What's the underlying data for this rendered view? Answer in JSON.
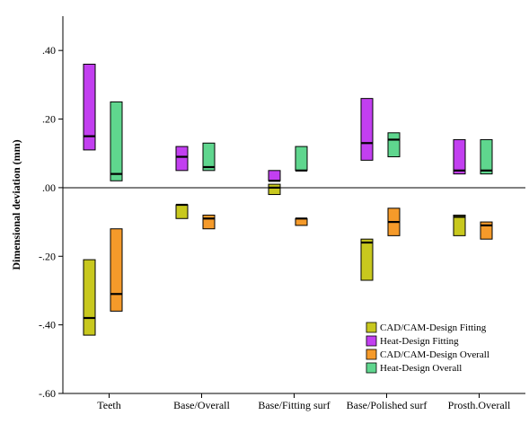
{
  "chart_data": {
    "type": "box",
    "title": "",
    "xlabel": "",
    "ylabel": "Dimensional deviation (mm)",
    "ylim": [
      -0.6,
      0.5
    ],
    "yticks": [
      {
        "value": 0.4,
        "label": ".40"
      },
      {
        "value": 0.2,
        "label": ".20"
      },
      {
        "value": 0.0,
        "label": ".00"
      },
      {
        "value": -0.2,
        "label": "-.20"
      },
      {
        "value": -0.4,
        "label": "-.40"
      },
      {
        "value": -0.6,
        "label": "-.60"
      }
    ],
    "reference_line": 0.0,
    "categories": [
      "Teeth",
      "Base/Overall",
      "Base/Fitting surf",
      "Base/Polished surf",
      "Prosth.Overall"
    ],
    "legend_position": "bottom-right",
    "series": [
      {
        "name": "CAD/CAM-Design Fitting",
        "color": "#c8c81e",
        "boxes": [
          {
            "low": -0.43,
            "high": -0.21,
            "median": -0.38
          },
          {
            "low": -0.09,
            "high": -0.05,
            "median": -0.05
          },
          {
            "low": -0.02,
            "high": 0.01,
            "median": 0.0
          },
          {
            "low": -0.27,
            "high": -0.15,
            "median": -0.16
          },
          {
            "low": -0.14,
            "high": -0.08,
            "median": -0.085
          }
        ]
      },
      {
        "name": "Heat-Design Fitting",
        "color": "#c23ff0",
        "boxes": [
          {
            "low": 0.11,
            "high": 0.36,
            "median": 0.15
          },
          {
            "low": 0.05,
            "high": 0.12,
            "median": 0.09
          },
          {
            "low": 0.02,
            "high": 0.05,
            "median": 0.02
          },
          {
            "low": 0.08,
            "high": 0.26,
            "median": 0.13
          },
          {
            "low": 0.04,
            "high": 0.14,
            "median": 0.05
          }
        ]
      },
      {
        "name": "CAD/CAM-Design Overall",
        "color": "#f59a2a",
        "boxes": [
          {
            "low": -0.36,
            "high": -0.12,
            "median": -0.31
          },
          {
            "low": -0.12,
            "high": -0.08,
            "median": -0.09
          },
          {
            "low": -0.11,
            "high": -0.09,
            "median": -0.09
          },
          {
            "low": -0.14,
            "high": -0.06,
            "median": -0.1
          },
          {
            "low": -0.15,
            "high": -0.1,
            "median": -0.11
          }
        ]
      },
      {
        "name": "Heat-Design Overall",
        "color": "#5fd68e",
        "boxes": [
          {
            "low": 0.02,
            "high": 0.25,
            "median": 0.04
          },
          {
            "low": 0.05,
            "high": 0.13,
            "median": 0.06
          },
          {
            "low": 0.05,
            "high": 0.12,
            "median": 0.05
          },
          {
            "low": 0.09,
            "high": 0.16,
            "median": 0.14
          },
          {
            "low": 0.04,
            "high": 0.14,
            "median": 0.05
          }
        ]
      }
    ]
  }
}
